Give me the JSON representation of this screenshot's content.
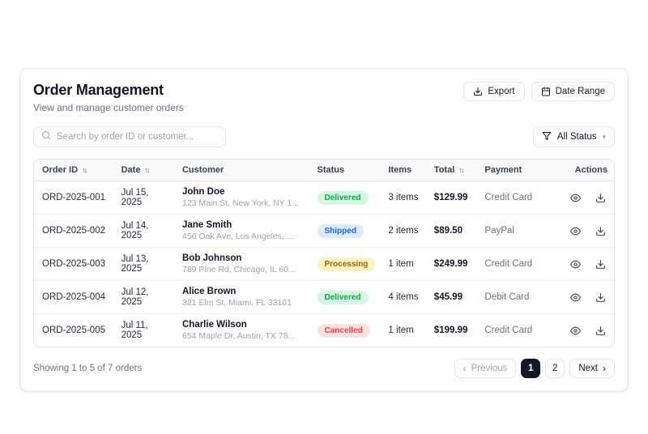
{
  "header": {
    "title": "Order Management",
    "subtitle": "View and manage customer orders",
    "export_label": "Export",
    "date_range_label": "Date Range"
  },
  "toolbar": {
    "search_placeholder": "Search by order ID or customer...",
    "status_filter_label": "All Status"
  },
  "icons": {
    "sort": "↑↓",
    "chevron_down": "▾",
    "chevron_left": "‹",
    "chevron_right": "›"
  },
  "table": {
    "columns": [
      {
        "label": "Order ID",
        "sortable": true
      },
      {
        "label": "Date",
        "sortable": true
      },
      {
        "label": "Customer",
        "sortable": false
      },
      {
        "label": "Status",
        "sortable": false
      },
      {
        "label": "Items",
        "sortable": false
      },
      {
        "label": "Total",
        "sortable": true
      },
      {
        "label": "Payment",
        "sortable": false
      },
      {
        "label": "Actions",
        "sortable": false
      }
    ],
    "rows": [
      {
        "order_id": "ORD-2025-001",
        "date": "Jul 15, 2025",
        "customer": "John Doe",
        "address": "123 Main St, New York, NY 1...",
        "status": "Delivered",
        "items": "3 items",
        "total": "$129.99",
        "payment": "Credit Card"
      },
      {
        "order_id": "ORD-2025-002",
        "date": "Jul 14, 2025",
        "customer": "Jane Smith",
        "address": "456 Oak Ave, Los Angeles, ...",
        "status": "Shipped",
        "items": "2 items",
        "total": "$89.50",
        "payment": "PayPal"
      },
      {
        "order_id": "ORD-2025-003",
        "date": "Jul 13, 2025",
        "customer": "Bob Johnson",
        "address": "789 Pine Rd, Chicago, IL 60...",
        "status": "Processing",
        "items": "1 item",
        "total": "$249.99",
        "payment": "Credit Card"
      },
      {
        "order_id": "ORD-2025-004",
        "date": "Jul 12, 2025",
        "customer": "Alice Brown",
        "address": "321 Elm St, Miami, FL 33101",
        "status": "Delivered",
        "items": "4 items",
        "total": "$45.99",
        "payment": "Debit Card"
      },
      {
        "order_id": "ORD-2025-005",
        "date": "Jul 11, 2025",
        "customer": "Charlie Wilson",
        "address": "654 Maple Dr, Austin, TX 78...",
        "status": "Cancelled",
        "items": "1 item",
        "total": "$199.99",
        "payment": "Credit Card"
      }
    ]
  },
  "status_colors": {
    "Delivered": {
      "bg": "#d4f7e4",
      "text": "#16a34a"
    },
    "Shipped": {
      "bg": "#dbeafe",
      "text": "#2563eb"
    },
    "Processing": {
      "bg": "#fdf2c4",
      "text": "#a16207"
    },
    "Cancelled": {
      "bg": "#fee2e2",
      "text": "#ef4444"
    }
  },
  "footer": {
    "summary": "Showing 1 to 5 of 7 orders",
    "previous_label": "Previous",
    "next_label": "Next",
    "pages": {
      "0": "1",
      "1": "2"
    },
    "active_page": "1"
  }
}
